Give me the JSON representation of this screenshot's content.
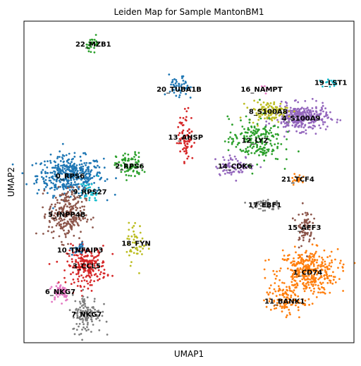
{
  "chart_data": {
    "type": "scatter",
    "title": "Leiden Map for Sample MantonBM1",
    "xlabel": "UMAP1",
    "ylabel": "UMAP2",
    "grid": false,
    "legend": "on data",
    "ticks": "none",
    "clusters": [
      {
        "name": "0_RPS6",
        "color": "#1f77b4",
        "x": 0.14,
        "y": 0.52,
        "sx": 0.05,
        "sy": 0.03,
        "n": 420
      },
      {
        "name": "1_CD74",
        "color": "#ff7f0e",
        "x": 0.86,
        "y": 0.22,
        "sx": 0.045,
        "sy": 0.035,
        "n": 380
      },
      {
        "name": "2_RPS6",
        "color": "#2ca02c",
        "x": 0.32,
        "y": 0.55,
        "sx": 0.02,
        "sy": 0.02,
        "n": 90
      },
      {
        "name": "3_CCL5",
        "color": "#d62728",
        "x": 0.19,
        "y": 0.24,
        "sx": 0.03,
        "sy": 0.03,
        "n": 230
      },
      {
        "name": "4_S100A9",
        "color": "#9467bd",
        "x": 0.84,
        "y": 0.7,
        "sx": 0.04,
        "sy": 0.02,
        "n": 320
      },
      {
        "name": "5_INPP4B",
        "color": "#8c564b",
        "x": 0.13,
        "y": 0.4,
        "sx": 0.028,
        "sy": 0.04,
        "n": 260
      },
      {
        "name": "6_NKG7",
        "color": "#e377c2",
        "x": 0.11,
        "y": 0.16,
        "sx": 0.015,
        "sy": 0.015,
        "n": 60
      },
      {
        "name": "7_NKG7",
        "color": "#7f7f7f",
        "x": 0.19,
        "y": 0.09,
        "sx": 0.022,
        "sy": 0.03,
        "n": 130
      },
      {
        "name": "8_S100A8",
        "color": "#bcbd22",
        "x": 0.74,
        "y": 0.72,
        "sx": 0.03,
        "sy": 0.015,
        "n": 110
      },
      {
        "name": "9_RPS27",
        "color": "#17becf",
        "x": 0.2,
        "y": 0.47,
        "sx": 0.015,
        "sy": 0.018,
        "n": 35
      },
      {
        "name": "10_TNFAIP3",
        "color": "#1f77b4",
        "x": 0.17,
        "y": 0.29,
        "sx": 0.012,
        "sy": 0.01,
        "n": 25
      },
      {
        "name": "11_BANK1",
        "color": "#ff7f0e",
        "x": 0.79,
        "y": 0.13,
        "sx": 0.03,
        "sy": 0.02,
        "n": 100
      },
      {
        "name": "12_LYZ",
        "color": "#2ca02c",
        "x": 0.7,
        "y": 0.63,
        "sx": 0.04,
        "sy": 0.035,
        "n": 200
      },
      {
        "name": "13_AHSP",
        "color": "#d62728",
        "x": 0.49,
        "y": 0.64,
        "sx": 0.012,
        "sy": 0.04,
        "n": 80
      },
      {
        "name": "14_CDK6",
        "color": "#9467bd",
        "x": 0.64,
        "y": 0.55,
        "sx": 0.03,
        "sy": 0.015,
        "n": 70
      },
      {
        "name": "15_AFF3",
        "color": "#8c564b",
        "x": 0.85,
        "y": 0.36,
        "sx": 0.012,
        "sy": 0.03,
        "n": 70
      },
      {
        "name": "16_NAMPT",
        "color": "#e377c2",
        "x": 0.72,
        "y": 0.79,
        "sx": 0.008,
        "sy": 0.008,
        "n": 6
      },
      {
        "name": "17_EBF1",
        "color": "#7f7f7f",
        "x": 0.73,
        "y": 0.43,
        "sx": 0.025,
        "sy": 0.01,
        "n": 50
      },
      {
        "name": "18_FYN",
        "color": "#bcbd22",
        "x": 0.34,
        "y": 0.31,
        "sx": 0.015,
        "sy": 0.03,
        "n": 50
      },
      {
        "name": "19_LST1",
        "color": "#17becf",
        "x": 0.93,
        "y": 0.81,
        "sx": 0.018,
        "sy": 0.008,
        "n": 15
      },
      {
        "name": "20_TUBA1B",
        "color": "#1f77b4",
        "x": 0.47,
        "y": 0.79,
        "sx": 0.015,
        "sy": 0.02,
        "n": 50
      },
      {
        "name": "21_TCF4",
        "color": "#ff7f0e",
        "x": 0.83,
        "y": 0.51,
        "sx": 0.01,
        "sy": 0.008,
        "n": 20
      },
      {
        "name": "22_MZB1",
        "color": "#2ca02c",
        "x": 0.21,
        "y": 0.93,
        "sx": 0.01,
        "sy": 0.01,
        "n": 30
      }
    ],
    "xlim": [
      0,
      1
    ],
    "ylim": [
      0,
      1
    ]
  }
}
